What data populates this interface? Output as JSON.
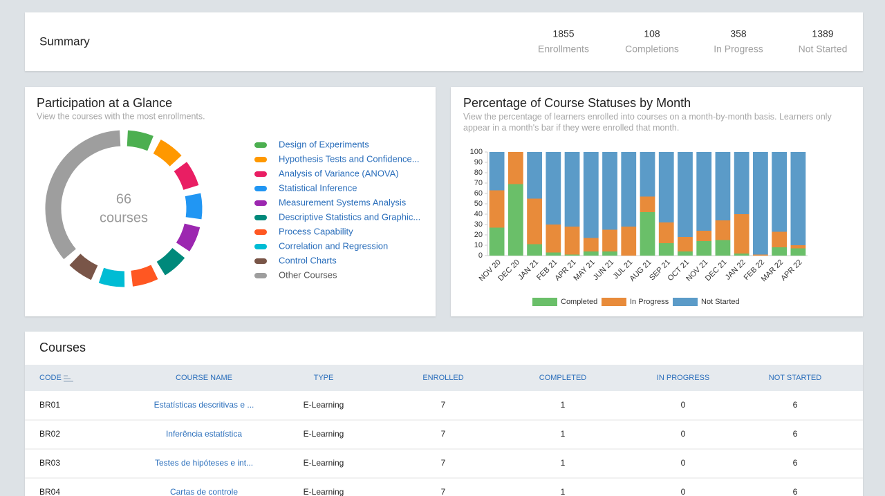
{
  "summary": {
    "title": "Summary",
    "stats": [
      {
        "value": 1855,
        "label": "Enrollments"
      },
      {
        "value": 108,
        "label": "Completions"
      },
      {
        "value": 358,
        "label": "In Progress"
      },
      {
        "value": 1389,
        "label": "Not Started"
      }
    ]
  },
  "chart_data": [
    {
      "type": "donut",
      "title": "Participation at a Glance",
      "subtitle": "View the courses with the most enrollments.",
      "center_value": 66,
      "center_label": "courses",
      "categories": [
        "Design of Experiments",
        "Hypothesis Tests and Confidence...",
        "Analysis of Variance (ANOVA)",
        "Statistical Inference",
        "Measurement Systems Analysis",
        "Descriptive Statistics and Graphic...",
        "Process Capability",
        "Correlation and Regression",
        "Control Charts",
        "Other Courses"
      ],
      "colors": [
        "#4caf50",
        "#ff9800",
        "#e91e63",
        "#2196f3",
        "#9c27b0",
        "#00897b",
        "#ff5722",
        "#00bcd4",
        "#795548",
        "#9e9e9e"
      ],
      "values": [
        7,
        7,
        7,
        7,
        7,
        7,
        7,
        7,
        7,
        37
      ]
    },
    {
      "type": "bar",
      "stacked": true,
      "title": "Percentage of Course Statuses by Month",
      "subtitle": "View the percentage of learners enrolled into courses on a month-by-month basis. Learners only appear in a month's bar if they were enrolled that month.",
      "categories": [
        "NOV 20",
        "DEC 20",
        "JAN 21",
        "FEB 21",
        "APR 21",
        "MAY 21",
        "JUN 21",
        "JUL 21",
        "AUG 21",
        "SEP 21",
        "OCT 21",
        "NOV 21",
        "DEC 21",
        "JAN 22",
        "FEB 22",
        "MAR 22",
        "APR 22"
      ],
      "series": [
        {
          "name": "Completed",
          "color": "#6abf69",
          "values": [
            27,
            69,
            11,
            3,
            1,
            4,
            4,
            0,
            42,
            12,
            4,
            14,
            15,
            2,
            0,
            8,
            7
          ]
        },
        {
          "name": "In Progress",
          "color": "#e88b3a",
          "values": [
            36,
            31,
            44,
            27,
            27,
            13,
            21,
            28,
            15,
            20,
            14,
            10,
            19,
            38,
            1,
            15,
            3
          ]
        },
        {
          "name": "Not Started",
          "color": "#5b9bc8",
          "values": [
            37,
            0,
            45,
            70,
            72,
            83,
            75,
            72,
            43,
            68,
            82,
            76,
            66,
            60,
            99,
            77,
            90
          ]
        }
      ],
      "ylim": [
        0,
        100
      ],
      "yticks": [
        0,
        10,
        20,
        30,
        40,
        50,
        60,
        70,
        80,
        90,
        100
      ],
      "grid": false,
      "legend": "bottom"
    }
  ],
  "courses": {
    "title": "Courses",
    "columns": [
      "CODE",
      "COURSE NAME",
      "TYPE",
      "ENROLLED",
      "COMPLETED",
      "IN PROGRESS",
      "NOT STARTED"
    ],
    "rows": [
      [
        "BR01",
        "Estatísticas descritivas e ...",
        "E-Learning",
        7,
        1,
        0,
        6
      ],
      [
        "BR02",
        "Inferência estatística",
        "E-Learning",
        7,
        1,
        0,
        6
      ],
      [
        "BR03",
        "Testes de hipóteses e int...",
        "E-Learning",
        7,
        1,
        0,
        6
      ],
      [
        "BR04",
        "Cartas de controle",
        "E-Learning",
        7,
        1,
        0,
        6
      ]
    ]
  }
}
